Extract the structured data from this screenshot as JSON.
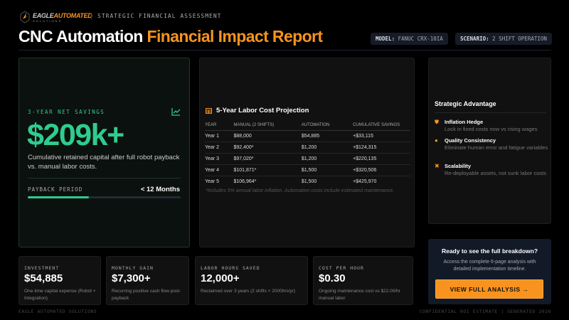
{
  "header": {
    "logo_part1": "EAGLE",
    "logo_part2": "AUTOMATED",
    "logo_sub": "SOLUTIONS",
    "subtitle": "STRATEGIC FINANCIAL ASSESSMENT",
    "title_white": "CNC Automation",
    "title_orange": "Financial Impact Report",
    "model_label": "MODEL:",
    "model_value": "FANUC CRX-10IA",
    "scenario_label": "SCENARIO:",
    "scenario_value": "2 SHIFT OPERATION"
  },
  "savings": {
    "label": "3-YEAR NET SAVINGS",
    "icon": "chart-line-icon",
    "value": "$209k+",
    "description": "Cumulative retained capital after full robot payback vs. manual labor costs.",
    "payback_label": "PAYBACK PERIOD",
    "payback_value": "< 12 Months",
    "payback_progress_percent": 40
  },
  "projection": {
    "icon": "table-icon",
    "title": "5-Year Labor Cost Projection",
    "columns": [
      "YEAR",
      "MANUAL (2 SHIFTS)",
      "AUTOMATION",
      "CUMULATIVE SAVINGS"
    ],
    "rows": [
      [
        "Year 1",
        "$88,000",
        "$54,885",
        "+$33,115"
      ],
      [
        "Year 2",
        "$92,400*",
        "$1,200",
        "+$124,315"
      ],
      [
        "Year 3",
        "$97,020*",
        "$1,200",
        "+$220,135"
      ],
      [
        "Year 4",
        "$101,871*",
        "$1,500",
        "+$320,506"
      ],
      [
        "Year 5",
        "$106,964*",
        "$1,500",
        "+$425,970"
      ]
    ],
    "note": "*Includes 5% annual labor inflation. Automation costs include estimated maintenance."
  },
  "advantage": {
    "title": "Strategic Advantage",
    "items": [
      {
        "icon": "shield-icon",
        "title": "Inflation Hedge",
        "desc": "Lock in fixed costs now vs rising wages"
      },
      {
        "icon": "badge-icon",
        "title": "Quality Consistency",
        "desc": "Eliminate human error and fatigue variables"
      },
      {
        "icon": "scale-arrows-icon",
        "title": "Scalability",
        "desc": "Re-deployable assets, not sunk labor costs"
      }
    ]
  },
  "cta": {
    "title": "Ready to see the full breakdown?",
    "desc": "Access the complete 6-page analysis with detailed implementation timeline.",
    "button": "VIEW FULL ANALYSIS →"
  },
  "kpis": [
    {
      "label": "INVESTMENT",
      "value": "$54,885",
      "desc": "One-time capital expense (Robot + Integration)"
    },
    {
      "label": "MONTHLY GAIN",
      "value": "$7,300+",
      "desc": "Recurring positive cash flow post-payback"
    },
    {
      "label": "LABOR HOURS SAVED",
      "value": "12,000+",
      "desc": "Reclaimed over 3 years (2 shifts × 2000hrs/yr)"
    },
    {
      "label": "COST PER HOUR",
      "value": "$0.30",
      "desc": "Ongoing maintenance cost vs $22.00/hr manual labor"
    }
  ],
  "footer": {
    "left": "EAGLE AUTOMATED SOLUTIONS",
    "right": "CONFIDENTIAL ROI ESTIMATE | GENERATED 2026"
  },
  "colors": {
    "accent": "#f7931e",
    "green": "#2ecc8f",
    "background": "#000000"
  }
}
